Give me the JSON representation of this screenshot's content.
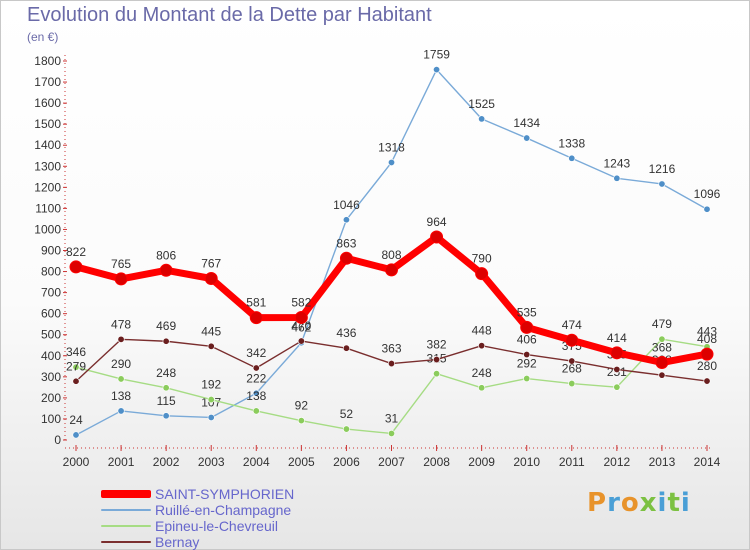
{
  "title": "Evolution du Montant de la Dette par Habitant",
  "unit_label": "(en €)",
  "logo": {
    "letters": [
      "P",
      "r",
      "o",
      "x",
      "i",
      "t",
      "i"
    ],
    "colors": [
      "#e8932b",
      "#4a9fd6",
      "#e8932b",
      "#7cc142",
      "#4a9fd6",
      "#7cc142",
      "#4a9fd6"
    ]
  },
  "chart_data": {
    "type": "line",
    "title": "Evolution du Montant de la Dette par Habitant",
    "ylabel": "(en €)",
    "xlabel": "",
    "x": [
      "2000",
      "2001",
      "2002",
      "2003",
      "2004",
      "2005",
      "2006",
      "2007",
      "2008",
      "2009",
      "2010",
      "2011",
      "2012",
      "2013",
      "2014"
    ],
    "ylim": [
      0,
      1800
    ],
    "yticks": [
      0,
      100,
      200,
      300,
      400,
      500,
      600,
      700,
      800,
      900,
      1000,
      1100,
      1200,
      1300,
      1400,
      1500,
      1600,
      1700,
      1800
    ],
    "grid": false,
    "legend_position": "bottom-left",
    "series": [
      {
        "name": "SAINT-SYMPHORIEN",
        "color": "#ff0000",
        "marker_color": "#dd0000",
        "values": [
          822,
          765,
          806,
          767,
          581,
          582,
          863,
          808,
          964,
          790,
          535,
          474,
          414,
          368,
          408
        ]
      },
      {
        "name": "Ruillé-en-Champagne",
        "color": "#7aaad8",
        "marker_color": "#4f8fc8",
        "values": [
          24,
          138,
          115,
          107,
          222,
          462,
          1046,
          1318,
          1759,
          1525,
          1434,
          1338,
          1243,
          1216,
          1096
        ]
      },
      {
        "name": "Epineu-le-Chevreuil",
        "color": "#a6dc84",
        "marker_color": "#8bcc5c",
        "values": [
          346,
          290,
          248,
          192,
          138,
          92,
          52,
          31,
          315,
          248,
          292,
          268,
          251,
          479,
          443
        ]
      },
      {
        "name": "Bernay",
        "color": "#7a2e2e",
        "marker_color": "#6a1e1e",
        "values": [
          279,
          478,
          469,
          445,
          342,
          470,
          436,
          363,
          382,
          448,
          406,
          375,
          335,
          308,
          280
        ]
      }
    ]
  }
}
